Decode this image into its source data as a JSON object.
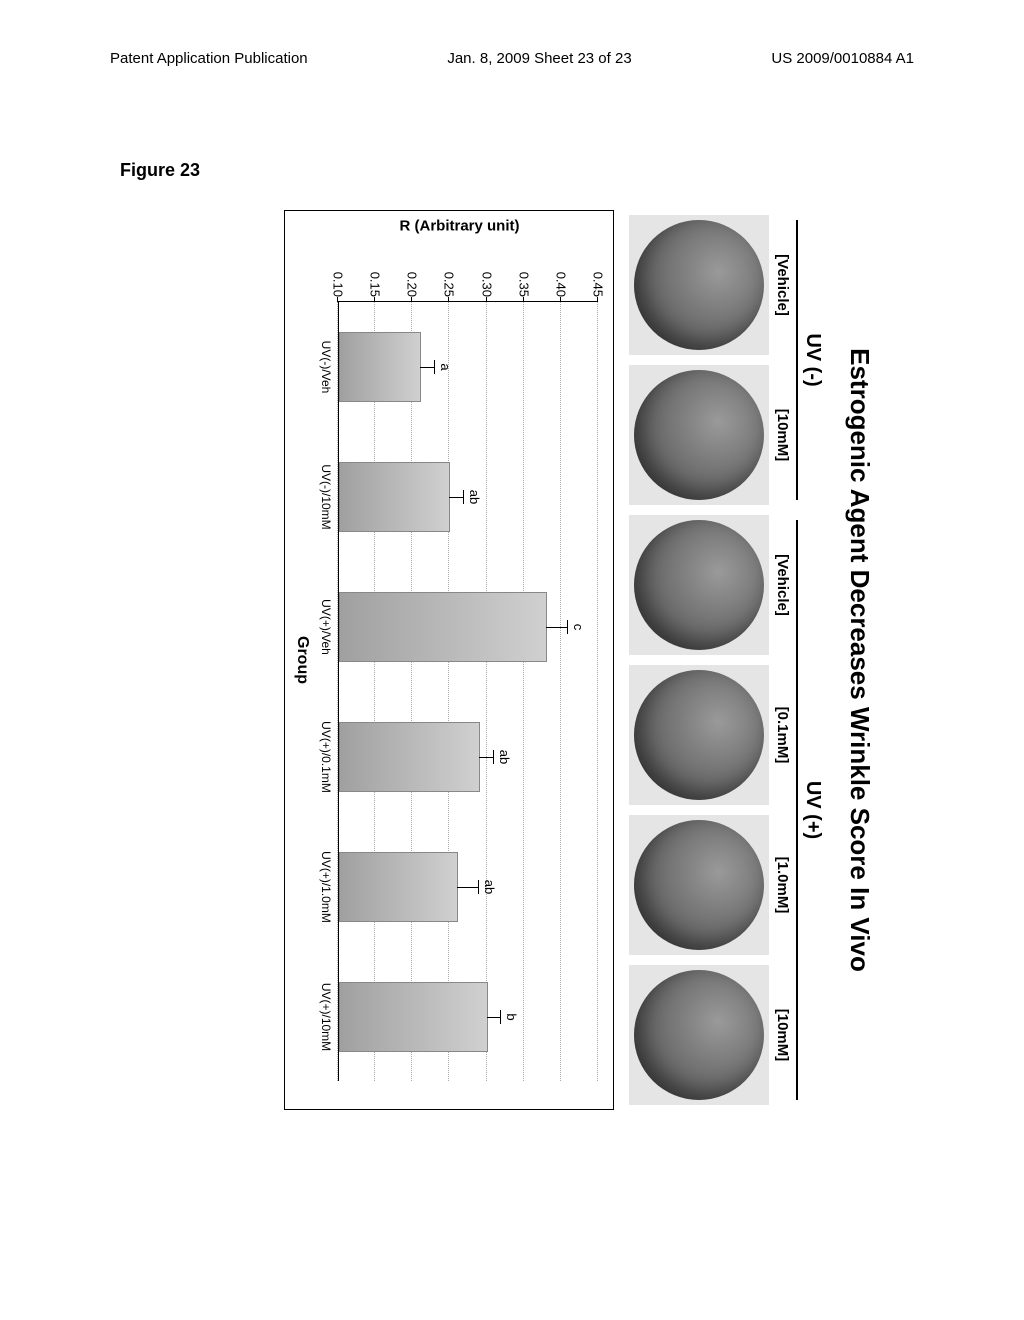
{
  "header": {
    "left": "Patent Application Publication",
    "center": "Jan. 8, 2009  Sheet 23 of 23",
    "right": "US 2009/0010884 A1"
  },
  "figure_label": "Figure 23",
  "title": "Estrogenic Agent Decreases Wrinkle Score In Vivo",
  "uv_groups": {
    "minus": {
      "label": "UV (-)",
      "cells": [
        "[Vehicle]",
        "[10mM]"
      ]
    },
    "plus": {
      "label": "UV (+)",
      "cells": [
        "[Vehicle]",
        "[0.1mM]",
        "[1.0mM]",
        "[10mM]"
      ]
    }
  },
  "chart": {
    "type": "bar",
    "ylabel": "R (Arbitrary unit)",
    "xlabel": "Group",
    "ylim": [
      0.1,
      0.45
    ],
    "ytick_step": 0.05,
    "yticks": [
      "0.10",
      "0.15",
      "0.20",
      "0.25",
      "0.30",
      "0.35",
      "0.40",
      "0.45"
    ],
    "bar_color": "#b8b8b8",
    "grid_color": "#aaaaaa",
    "background_color": "#ffffff",
    "bars": [
      {
        "label": "UV(-)/Veh",
        "value": 0.21,
        "error": 0.02,
        "sig": "a"
      },
      {
        "label": "UV(-)/10mM",
        "value": 0.25,
        "error": 0.02,
        "sig": "ab"
      },
      {
        "label": "UV(+)/Veh",
        "value": 0.38,
        "error": 0.03,
        "sig": "c"
      },
      {
        "label": "UV(+)/0.1mM",
        "value": 0.29,
        "error": 0.02,
        "sig": "ab"
      },
      {
        "label": "UV(+)/1.0mM",
        "value": 0.26,
        "error": 0.03,
        "sig": "ab"
      },
      {
        "label": "UV(+)/10mM",
        "value": 0.3,
        "error": 0.02,
        "sig": "b"
      }
    ]
  }
}
